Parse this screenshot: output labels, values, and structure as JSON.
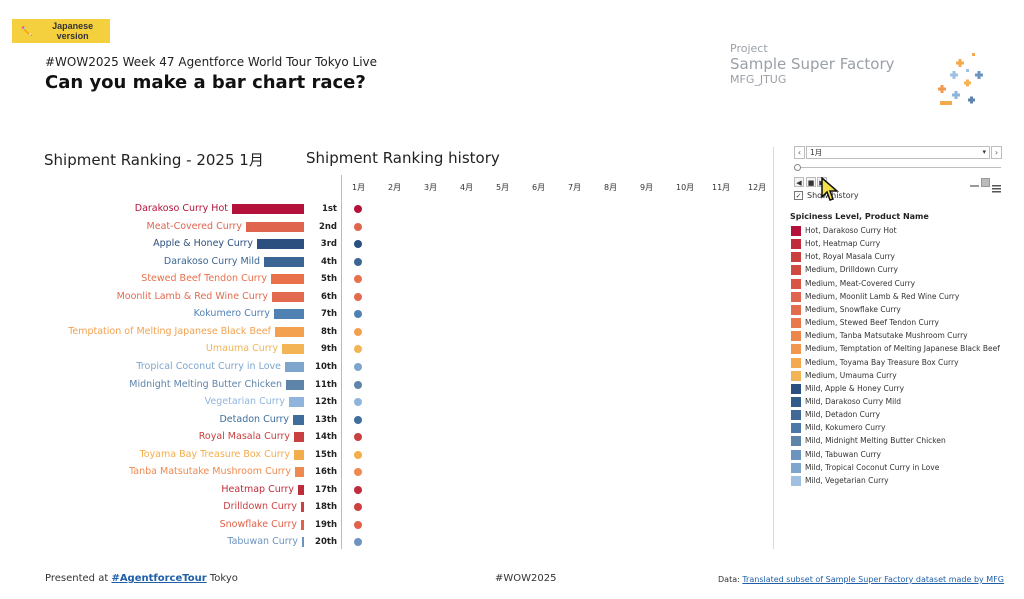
{
  "header": {
    "jp_button": "Japanese version",
    "subtitle": "#WOW2025 Week 47 Agentforce World Tour Tokyo Live",
    "title": "Can you make a bar chart race?"
  },
  "logo": {
    "line1": "Project",
    "line2": "Sample Super Factory",
    "line3": "MFG_JTUG"
  },
  "ranking": {
    "title": "Shipment Ranking - 2025 1月"
  },
  "history": {
    "title": "Shipment Ranking history",
    "months": [
      "1月",
      "2月",
      "3月",
      "4月",
      "5月",
      "6月",
      "7月",
      "8月",
      "9月",
      "10月",
      "11月",
      "12月"
    ]
  },
  "chart_data": {
    "type": "bar",
    "title": "Shipment Ranking - 2025 1月",
    "categories": [
      "Darakoso Curry Hot",
      "Meat-Covered Curry",
      "Apple & Honey Curry",
      "Darakoso Curry Mild",
      "Stewed Beef Tendon Curry",
      "Moonlit Lamb & Red Wine Curry",
      "Kokumero Curry",
      "Temptation of Melting Japanese Black Beef",
      "Umauma Curry",
      "Tropical Coconut Curry in Love",
      "Midnight Melting Butter Chicken",
      "Vegetarian Curry",
      "Detadon Curry",
      "Royal Masala Curry",
      "Toyama Bay Treasure Box Curry",
      "Tanba Matsutake Mushroom Curry",
      "Heatmap Curry",
      "Drilldown Curry",
      "Snowflake Curry",
      "Tabuwan Curry"
    ],
    "values": [
      72,
      58,
      47,
      40,
      33,
      32,
      30,
      29,
      22,
      19,
      18,
      15,
      11,
      10,
      10,
      9,
      6,
      3,
      3,
      1
    ],
    "ranks": [
      "1st",
      "2nd",
      "3rd",
      "4th",
      "5th",
      "6th",
      "7th",
      "8th",
      "9th",
      "10th",
      "11th",
      "12th",
      "13th",
      "14th",
      "15th",
      "16th",
      "17th",
      "18th",
      "19th",
      "20th"
    ],
    "colors": [
      "#b5123b",
      "#e0654f",
      "#2b4f7e",
      "#3b6593",
      "#e8704a",
      "#e26a4e",
      "#5081b3",
      "#f3a14f",
      "#f2b455",
      "#7ea5cc",
      "#5f84aa",
      "#8fb5dd",
      "#3f6e9c",
      "#c8403f",
      "#f3ad4b",
      "#ee8a4f",
      "#bf2c3c",
      "#cf3f3f",
      "#e26148",
      "#6d94bf"
    ]
  },
  "controls": {
    "month_value": "1月",
    "show_history": "Show history"
  },
  "legend": {
    "title": "Spiciness Level, Product Name",
    "items": [
      {
        "label": "Hot, Darakoso Curry Hot",
        "color": "#b5123b"
      },
      {
        "label": "Hot, Heatmap Curry",
        "color": "#bf2c3c"
      },
      {
        "label": "Hot, Royal Masala Curry",
        "color": "#c8403f"
      },
      {
        "label": "Medium, Drilldown Curry",
        "color": "#cf4a40"
      },
      {
        "label": "Medium, Meat-Covered Curry",
        "color": "#d85645"
      },
      {
        "label": "Medium, Moonlit Lamb & Red Wine Curry",
        "color": "#e0654f"
      },
      {
        "label": "Medium, Snowflake Curry",
        "color": "#e26d4c"
      },
      {
        "label": "Medium, Stewed Beef Tendon Curry",
        "color": "#e8794a"
      },
      {
        "label": "Medium, Tanba Matsutake Mushroom Curry",
        "color": "#ec874c"
      },
      {
        "label": "Medium, Temptation of Melting Japanese Black Beef",
        "color": "#f19850"
      },
      {
        "label": "Medium, Toyama Bay Treasure Box Curry",
        "color": "#f3a94e"
      },
      {
        "label": "Medium, Umauma Curry",
        "color": "#f2b455"
      },
      {
        "label": "Mild, Apple & Honey Curry",
        "color": "#2b4f7e"
      },
      {
        "label": "Mild, Darakoso Curry Mild",
        "color": "#335b8a"
      },
      {
        "label": "Mild, Detadon Curry",
        "color": "#3f6a98"
      },
      {
        "label": "Mild, Kokumero Curry",
        "color": "#4c78a8"
      },
      {
        "label": "Mild, Midnight Melting Butter Chicken",
        "color": "#5f84aa"
      },
      {
        "label": "Mild, Tabuwan Curry",
        "color": "#6d94bf"
      },
      {
        "label": "Mild, Tropical Coconut Curry in Love",
        "color": "#7ea5cc"
      },
      {
        "label": "Mild, Vegetarian Curry",
        "color": "#9fc0e0"
      }
    ]
  },
  "footer": {
    "presented_prefix": "Presented at ",
    "presented_link": "#AgentforceTour",
    "presented_suffix": " Tokyo",
    "hashtag": "#WOW2025",
    "data_prefix": "Data: ",
    "data_link": "Translated subset of Sample Super Factory dataset made by MFG"
  }
}
